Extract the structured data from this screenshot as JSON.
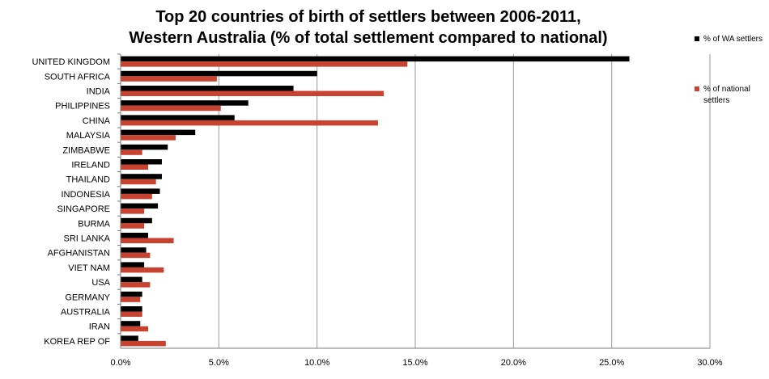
{
  "chart_data": {
    "type": "bar",
    "orientation": "horizontal",
    "title": "Top 20 countries of birth of settlers between 2006-2011,\nWestern Australia (% of total settlement compared to national)",
    "categories": [
      "UNITED KINGDOM",
      "SOUTH AFRICA",
      "INDIA",
      "PHILIPPINES",
      "CHINA",
      "MALAYSIA",
      "ZIMBABWE",
      "IRELAND",
      "THAILAND",
      "INDONESIA",
      "SINGAPORE",
      "BURMA",
      "SRI LANKA",
      "AFGHANISTAN",
      "VIET NAM",
      "USA",
      "GERMANY",
      "AUSTRALIA",
      "IRAN",
      "KOREA  REP OF"
    ],
    "series": [
      {
        "name": "% of WA settlers",
        "color": "#000000",
        "values": [
          25.9,
          10.0,
          8.8,
          6.5,
          5.8,
          3.8,
          2.4,
          2.1,
          2.1,
          2.0,
          1.9,
          1.6,
          1.4,
          1.3,
          1.2,
          1.1,
          1.1,
          1.1,
          1.0,
          0.9
        ]
      },
      {
        "name": "% of national settlers",
        "color": "#c8432f",
        "values": [
          14.6,
          4.9,
          13.4,
          5.1,
          13.1,
          2.8,
          1.1,
          1.4,
          1.8,
          1.6,
          1.2,
          1.2,
          2.7,
          1.5,
          2.2,
          1.5,
          1.0,
          1.1,
          1.4,
          2.3
        ]
      }
    ],
    "xlim": [
      0,
      30
    ],
    "xticks": [
      "0.0%",
      "5.0%",
      "10.0%",
      "15.0%",
      "20.0%",
      "25.0%",
      "30.0%"
    ],
    "xlabel": "",
    "ylabel": "",
    "grid": "vertical",
    "legend": "right"
  }
}
